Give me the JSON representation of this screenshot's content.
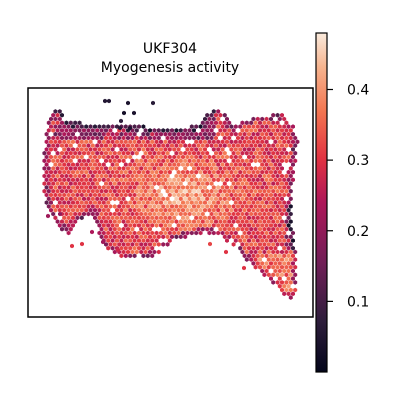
{
  "chart_data": {
    "type": "scatter",
    "title": "UKF304",
    "subtitle": "Myogenesis activity",
    "xlabel": "",
    "ylabel": "",
    "grid": false,
    "legend": "none",
    "marker": "hexagon",
    "colormap": "rocket",
    "colorbar": {
      "ticks": [
        0.1,
        0.2,
        0.3,
        0.4
      ],
      "tick_labels": [
        "0.1",
        "0.2",
        "0.3",
        "0.4"
      ],
      "range": [
        0.0,
        0.48
      ]
    },
    "colors": {
      "low": "#03051a",
      "mid_low": "#701f57",
      "mid": "#e13342",
      "mid_high": "#f37651",
      "high": "#faebdd"
    }
  }
}
